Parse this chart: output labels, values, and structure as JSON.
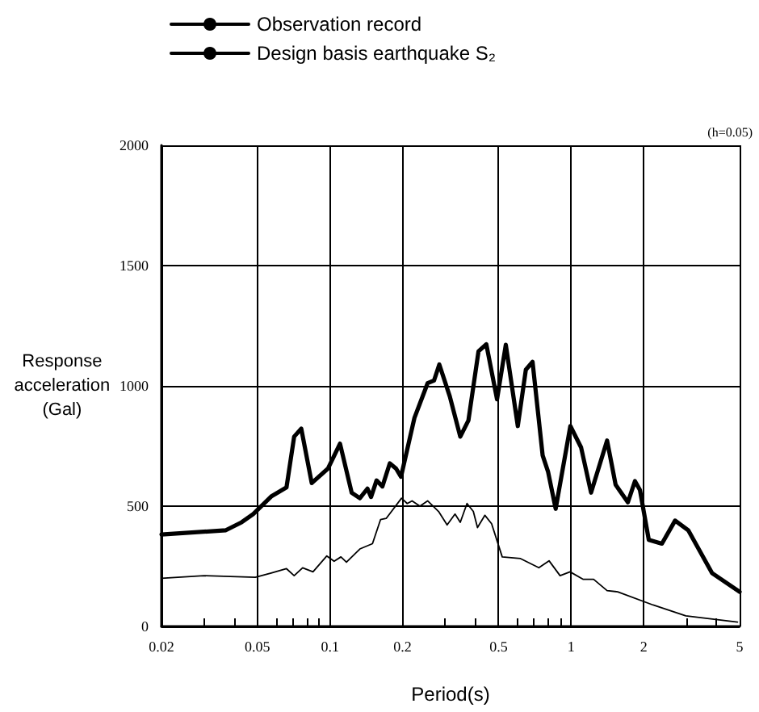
{
  "chart_data": {
    "type": "line",
    "xlabel": "Period(s)",
    "ylabel": "Response acceleration (Gal)",
    "annotations": [
      "(h=0.05)"
    ],
    "log": "x",
    "grid": true,
    "legend": "top",
    "marker": "none",
    "line_style": "solid",
    "xlim": [
      0.02,
      5
    ],
    "xticks": [
      0.02,
      {
        "value": 0.03,
        "label": null
      },
      {
        "value": 0.04,
        "label": null
      },
      0.05,
      {
        "value": 0.06,
        "label": null
      },
      {
        "value": 0.07,
        "label": null
      },
      {
        "value": 0.08,
        "label": null
      },
      {
        "value": 0.09,
        "label": null
      },
      0.1,
      0.2,
      {
        "value": 0.3,
        "label": null
      },
      {
        "value": 0.4,
        "label": null
      },
      0.5,
      {
        "value": 0.6,
        "label": null
      },
      {
        "value": 0.7,
        "label": null
      },
      {
        "value": 0.8,
        "label": null
      },
      {
        "value": 0.9,
        "label": null
      },
      1,
      2,
      {
        "value": 3,
        "label": null
      },
      {
        "value": 4,
        "label": null
      },
      5
    ],
    "ylim": [
      0,
      2000
    ],
    "yticks": [
      0,
      500,
      1000,
      1500,
      2000
    ],
    "series": [
      {
        "name": "Observation record",
        "color": "#000000",
        "x": [
          0.02,
          0.037,
          0.043,
          0.048,
          0.057,
          0.066,
          0.071,
          0.076,
          0.084,
          0.098,
          0.11,
          0.123,
          0.133,
          0.143,
          0.148,
          0.156,
          0.165,
          0.177,
          0.188,
          0.197,
          0.224,
          0.254,
          0.27,
          0.284,
          0.314,
          0.347,
          0.375,
          0.413,
          0.445,
          0.493,
          0.536,
          0.601,
          0.649,
          0.692,
          0.762,
          0.802,
          0.863,
          0.993,
          1.1,
          1.21,
          1.41,
          1.53,
          1.72,
          1.84,
          1.93,
          2.1,
          2.38,
          2.7,
          3.06,
          3.84,
          5
        ],
        "values": [
          382,
          400,
          433,
          467,
          540,
          578,
          789,
          822,
          596,
          656,
          760,
          556,
          533,
          573,
          538,
          607,
          582,
          678,
          656,
          622,
          867,
          1011,
          1022,
          1089,
          956,
          789,
          856,
          1144,
          1173,
          944,
          1171,
          833,
          1067,
          1100,
          711,
          644,
          489,
          833,
          744,
          556,
          773,
          589,
          516,
          604,
          567,
          360,
          344,
          440,
          400,
          222,
          144
        ]
      },
      {
        "name": "Design basis earthquake S₂",
        "color": "#000000",
        "x": [
          0.02,
          0.03,
          0.049,
          0.057,
          0.066,
          0.071,
          0.077,
          0.085,
          0.097,
          0.104,
          0.111,
          0.117,
          0.133,
          0.15,
          0.162,
          0.171,
          0.198,
          0.209,
          0.219,
          0.236,
          0.254,
          0.282,
          0.306,
          0.33,
          0.347,
          0.37,
          0.393,
          0.409,
          0.439,
          0.468,
          0.518,
          0.617,
          0.735,
          0.81,
          0.9,
          0.99,
          1.12,
          1.24,
          1.41,
          1.56,
          2.19,
          2.99,
          4.9
        ],
        "values": [
          200,
          211,
          204,
          222,
          240,
          211,
          244,
          227,
          293,
          271,
          289,
          267,
          322,
          344,
          444,
          449,
          533,
          511,
          522,
          500,
          522,
          478,
          422,
          467,
          433,
          511,
          478,
          411,
          462,
          427,
          289,
          282,
          244,
          273,
          211,
          227,
          196,
          196,
          149,
          144,
          89,
          44,
          18
        ]
      }
    ]
  }
}
